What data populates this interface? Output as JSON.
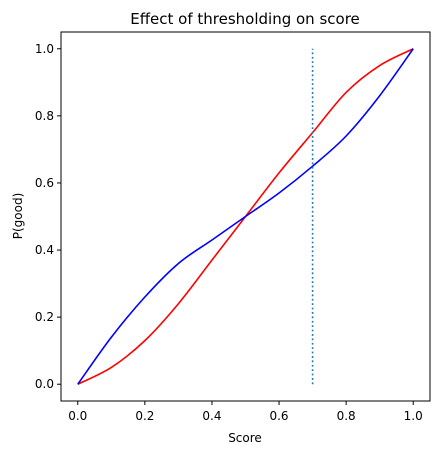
{
  "chart_data": {
    "type": "line",
    "title": "Effect of thresholding on score",
    "xlabel": "Score",
    "ylabel": "P(good)",
    "xlim": [
      -0.05,
      1.05
    ],
    "ylim": [
      -0.05,
      1.05
    ],
    "xticks": [
      "0.0",
      "0.2",
      "0.4",
      "0.6",
      "0.8",
      "1.0"
    ],
    "yticks": [
      "0.0",
      "0.2",
      "0.4",
      "0.6",
      "0.8",
      "1.0"
    ],
    "grid": false,
    "legend": "none",
    "series": [
      {
        "color": "#ff0000",
        "style": "solid",
        "x": [
          0.0,
          0.1,
          0.2,
          0.3,
          0.4,
          0.5,
          0.6,
          0.7,
          0.8,
          0.9,
          1.0
        ],
        "y": [
          0.0,
          0.05,
          0.13,
          0.24,
          0.37,
          0.5,
          0.63,
          0.75,
          0.87,
          0.95,
          1.0
        ]
      },
      {
        "color": "#0000ff",
        "style": "solid",
        "x": [
          0.0,
          0.1,
          0.2,
          0.3,
          0.4,
          0.5,
          0.6,
          0.7,
          0.8,
          0.9,
          1.0
        ],
        "y": [
          0.0,
          0.14,
          0.26,
          0.36,
          0.43,
          0.5,
          0.57,
          0.65,
          0.74,
          0.86,
          1.0
        ]
      },
      {
        "color": "#1f77b4",
        "style": "dotted",
        "x": [
          0.7,
          0.7
        ],
        "y": [
          0.0,
          1.0
        ]
      }
    ]
  }
}
